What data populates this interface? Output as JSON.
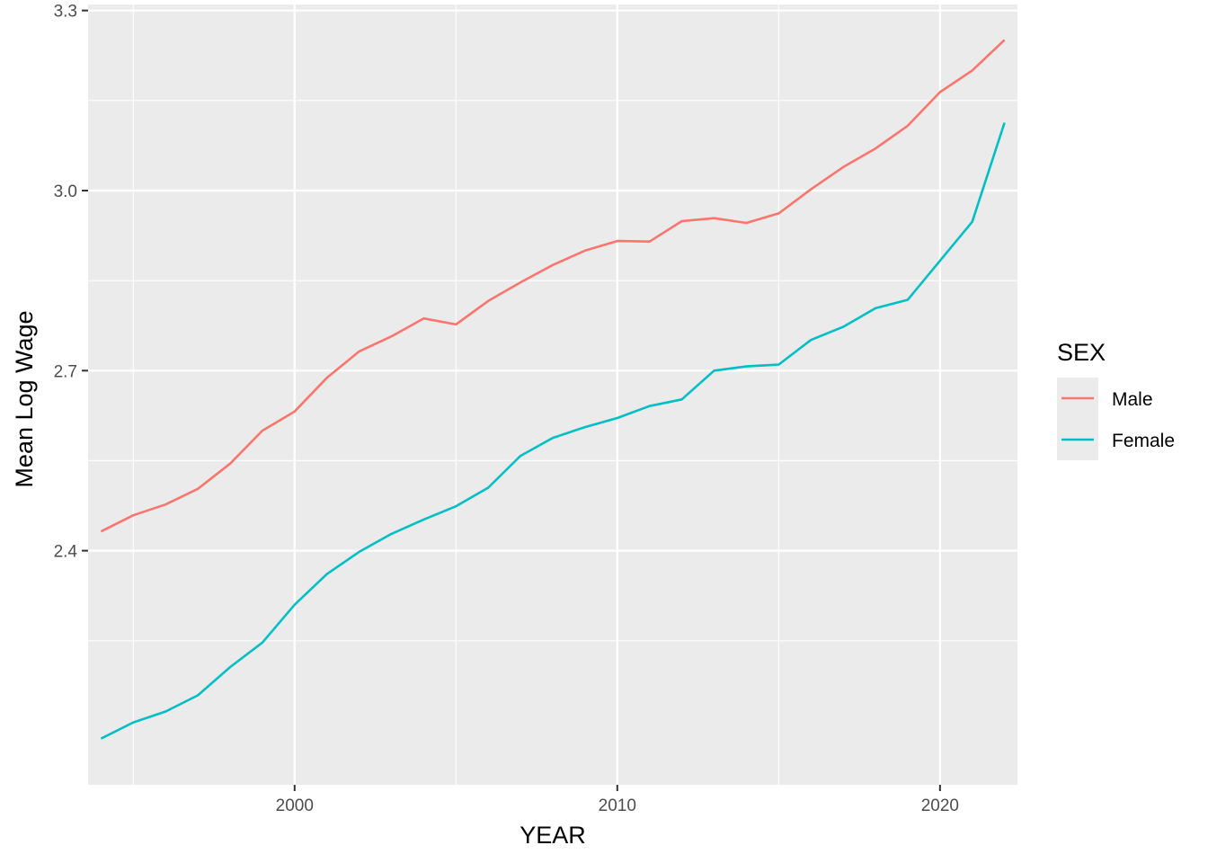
{
  "chart_data": {
    "type": "line",
    "xlabel": "YEAR",
    "ylabel": "Mean Log Wage",
    "xlim": [
      1993.6,
      2022.4
    ],
    "ylim": [
      2.01,
      3.31
    ],
    "x_ticks": [
      2000,
      2010,
      2020
    ],
    "y_ticks": [
      2.4,
      2.7,
      3.0,
      3.3
    ],
    "y_tick_labels": [
      "2.4",
      "2.7",
      "3.0",
      "3.3"
    ],
    "x": [
      1994,
      1995,
      1996,
      1997,
      1998,
      1999,
      2000,
      2001,
      2002,
      2003,
      2004,
      2005,
      2006,
      2007,
      2008,
      2009,
      2010,
      2011,
      2012,
      2013,
      2014,
      2015,
      2016,
      2017,
      2018,
      2019,
      2020,
      2021,
      2022
    ],
    "legend": {
      "title": "SEX",
      "position": "right"
    },
    "grid": true,
    "background": "#ebebeb",
    "series": [
      {
        "name": "Male",
        "color": "#f8766d",
        "values": [
          2.432,
          2.459,
          2.477,
          2.503,
          2.545,
          2.6,
          2.632,
          2.688,
          2.732,
          2.757,
          2.787,
          2.777,
          2.816,
          2.847,
          2.876,
          2.9,
          2.916,
          2.915,
          2.949,
          2.954,
          2.946,
          2.962,
          3.002,
          3.039,
          3.07,
          3.108,
          3.164,
          3.2,
          3.251
        ]
      },
      {
        "name": "Female",
        "color": "#00bfc4",
        "values": [
          2.087,
          2.114,
          2.132,
          2.159,
          2.206,
          2.247,
          2.31,
          2.361,
          2.398,
          2.428,
          2.452,
          2.474,
          2.505,
          2.558,
          2.588,
          2.606,
          2.621,
          2.641,
          2.652,
          2.7,
          2.707,
          2.71,
          2.751,
          2.773,
          2.804,
          2.818,
          2.883,
          2.948,
          3.113
        ]
      }
    ]
  }
}
